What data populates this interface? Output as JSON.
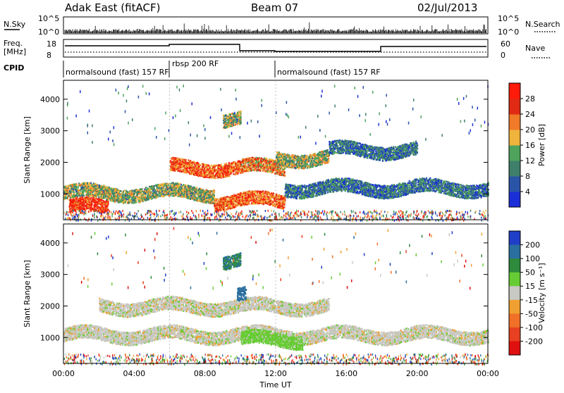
{
  "header": {
    "station": "Adak East (fitACF)",
    "beam": "Beam 07",
    "date": "02/Jul/2013"
  },
  "nsky_panel": {
    "left_label": "N.Sky",
    "right_label": "N.Search",
    "left_ticks": [
      "10^5",
      "10^0"
    ],
    "right_ticks": [
      "10^5",
      "10^0"
    ]
  },
  "freq_panel": {
    "left_label_1": "Freq.",
    "left_label_2": "[MHz]",
    "right_label": "Nave",
    "left_ticks": [
      "18",
      "8"
    ],
    "right_ticks": [
      "60",
      "0"
    ]
  },
  "cpid_panel": {
    "label": "CPID",
    "modes": [
      {
        "text": "normalsound (fast) 157 RF",
        "start": "00:00",
        "end": "06:00"
      },
      {
        "text": "rbsp 200 RF",
        "start": "06:00",
        "end": "12:00"
      },
      {
        "text": "normalsound (fast) 157 RF",
        "start": "12:00",
        "end": "00:00"
      }
    ]
  },
  "axes": {
    "x_ticks": [
      "00:00",
      "04:00",
      "08:00",
      "12:00",
      "16:00",
      "20:00",
      "00:00"
    ],
    "x_label": "Time UT",
    "y_label": "Slant Range [km]",
    "y_ticks": [
      "1000",
      "2000",
      "3000",
      "4000"
    ]
  },
  "power_scale": {
    "label": "Power [dB]",
    "ticks": [
      "4",
      "8",
      "12",
      "16",
      "20",
      "24",
      "28"
    ],
    "colors": [
      "#1b2fd8",
      "#2a54a8",
      "#3f7f6c",
      "#4fa35c",
      "#f0b43c",
      "#f07a28",
      "#e02a14",
      "#ff1a0a"
    ]
  },
  "velocity_scale": {
    "label": "Velocity [m s⁻¹]",
    "ticks": [
      "200",
      "100",
      "50",
      "15",
      "-15",
      "-50",
      "-100",
      "-200"
    ],
    "colors": [
      "#1f3fc8",
      "#2a6fa0",
      "#2e8a3c",
      "#66cc33",
      "#c8c8c4",
      "#f0a030",
      "#f07028",
      "#e84020",
      "#e01010"
    ]
  },
  "chart_data": [
    {
      "type": "heatmap",
      "title": "Power",
      "xlabel": "Time UT",
      "ylabel": "Slant Range [km]",
      "xlim": [
        "00:00",
        "24:00"
      ],
      "ylim": [
        180,
        4600
      ],
      "colorbar": {
        "label": "Power [dB]",
        "ticks": [
          4,
          8,
          12,
          16,
          20,
          24,
          28
        ],
        "range": [
          0,
          30
        ]
      },
      "features": [
        {
          "time_start": 0.3,
          "time_end": 2.5,
          "range_center": 600,
          "power": 25
        },
        {
          "time_start": 0.0,
          "time_end": 8.5,
          "range_center": 1050,
          "power": 14
        },
        {
          "time_start": 6.0,
          "time_end": 10.0,
          "range_center": 1850,
          "power": 22
        },
        {
          "time_start": 10.0,
          "time_end": 12.5,
          "range_center": 1850,
          "power": 20
        },
        {
          "time_start": 8.5,
          "time_end": 12.5,
          "range_center": 800,
          "power": 22
        },
        {
          "time_start": 12.5,
          "time_end": 24.0,
          "range_center": 1200,
          "power": 8
        },
        {
          "time_start": 12.0,
          "time_end": 15.0,
          "range_center": 2150,
          "power": 14
        },
        {
          "time_start": 15.0,
          "time_end": 20.0,
          "range_center": 2400,
          "power": 8
        },
        {
          "time_start": 9.0,
          "time_end": 10.0,
          "range_center": 3400,
          "power": 14
        }
      ]
    },
    {
      "type": "heatmap",
      "title": "Velocity",
      "xlabel": "Time UT",
      "ylabel": "Slant Range [km]",
      "xlim": [
        "00:00",
        "24:00"
      ],
      "ylim": [
        180,
        4600
      ],
      "colorbar": {
        "label": "Velocity [m s⁻¹]",
        "ticks": [
          200,
          100,
          50,
          15,
          -15,
          -50,
          -100,
          -200
        ],
        "range": [
          -250,
          250
        ]
      },
      "features": [
        {
          "time_start": 0.0,
          "time_end": 24.0,
          "range_center": 1100,
          "velocity": 0
        },
        {
          "time_start": 2.0,
          "time_end": 15.0,
          "range_center": 2000,
          "velocity": 0
        },
        {
          "time_start": 10.0,
          "time_end": 13.5,
          "range_center": 950,
          "velocity": 30
        },
        {
          "time_start": 9.8,
          "time_end": 10.3,
          "range_center": 2350,
          "velocity": 150
        },
        {
          "time_start": 9.0,
          "time_end": 10.0,
          "range_center": 3450,
          "velocity": 100
        }
      ]
    },
    {
      "type": "line",
      "title": "Frequency",
      "xlabel": "Time UT",
      "ylabel": "Freq. [MHz]",
      "ylim": [
        8,
        18
      ],
      "series": [
        {
          "name": "Freq.",
          "x": [
            0,
            6,
            10,
            18,
            24
          ],
          "values": [
            13,
            13.5,
            10.5,
            12.5,
            12.5
          ]
        },
        {
          "name": "Nave",
          "x": [
            0,
            24
          ],
          "values": [
            10,
            10
          ]
        }
      ]
    }
  ]
}
